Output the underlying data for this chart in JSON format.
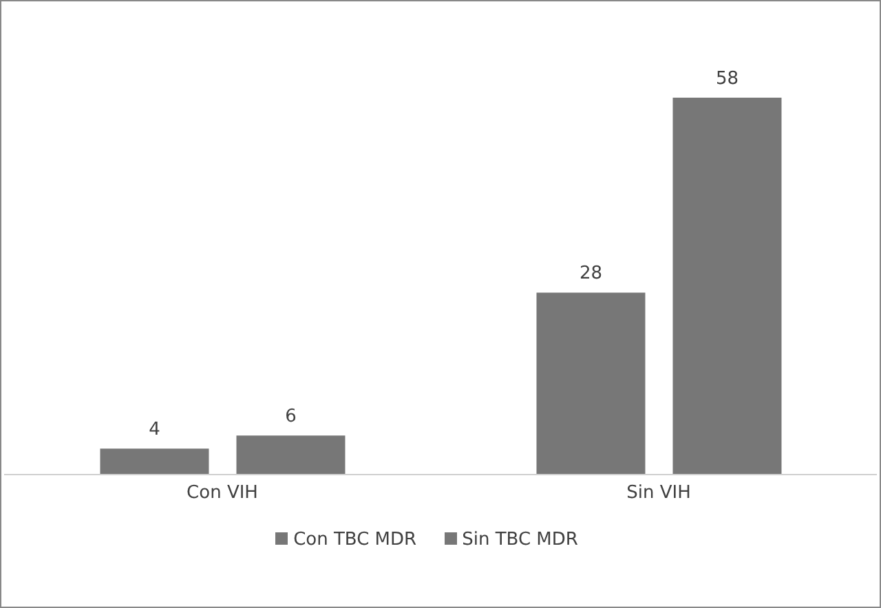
{
  "chart_data": {
    "type": "bar",
    "categories": [
      "Con VIH",
      "Sin VIH"
    ],
    "series": [
      {
        "name": "Con TBC MDR",
        "color": "#777777",
        "values": [
          4,
          28
        ]
      },
      {
        "name": "Sin TBC MDR",
        "color": "#777777",
        "values": [
          6,
          58
        ]
      }
    ],
    "data_labels": true,
    "legend": "bottom",
    "grid": false
  }
}
